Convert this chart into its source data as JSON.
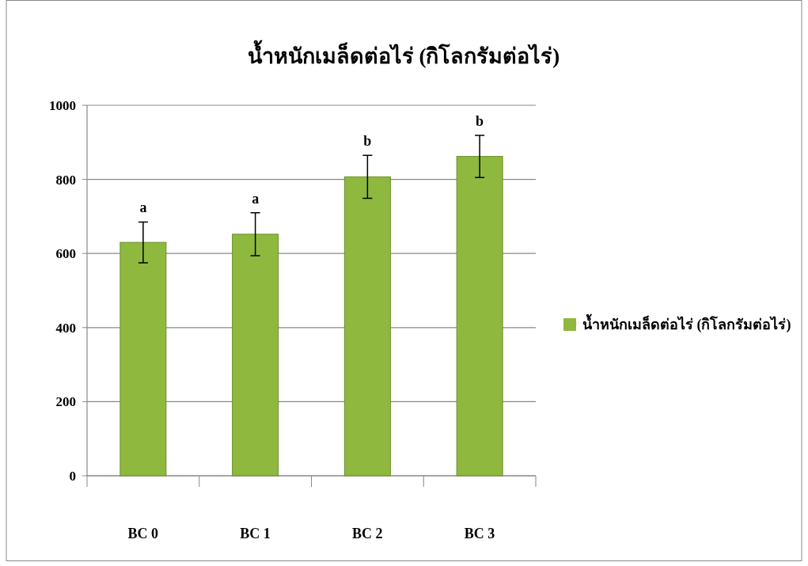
{
  "chart_data": {
    "type": "bar",
    "title": "น้ำหนักเมล็ดต่อไร่ (กิโลกรัมต่อไร่)",
    "categories": [
      "BC 0",
      "BC 1",
      "BC 2",
      "BC 3"
    ],
    "series": [
      {
        "name": "น้ำหนักเมล็ดต่อไร่ (กิโลกรัมต่อไร่)",
        "color": "#8fb83e",
        "values": [
          630,
          652,
          807,
          862
        ],
        "errors": [
          55,
          58,
          58,
          57
        ]
      }
    ],
    "ylim": [
      0,
      1000
    ],
    "yticks": [
      0,
      200,
      400,
      600,
      800,
      1000
    ],
    "grid": "y",
    "legend": "right",
    "annotations": [
      "a",
      "a",
      "b",
      "b"
    ]
  }
}
